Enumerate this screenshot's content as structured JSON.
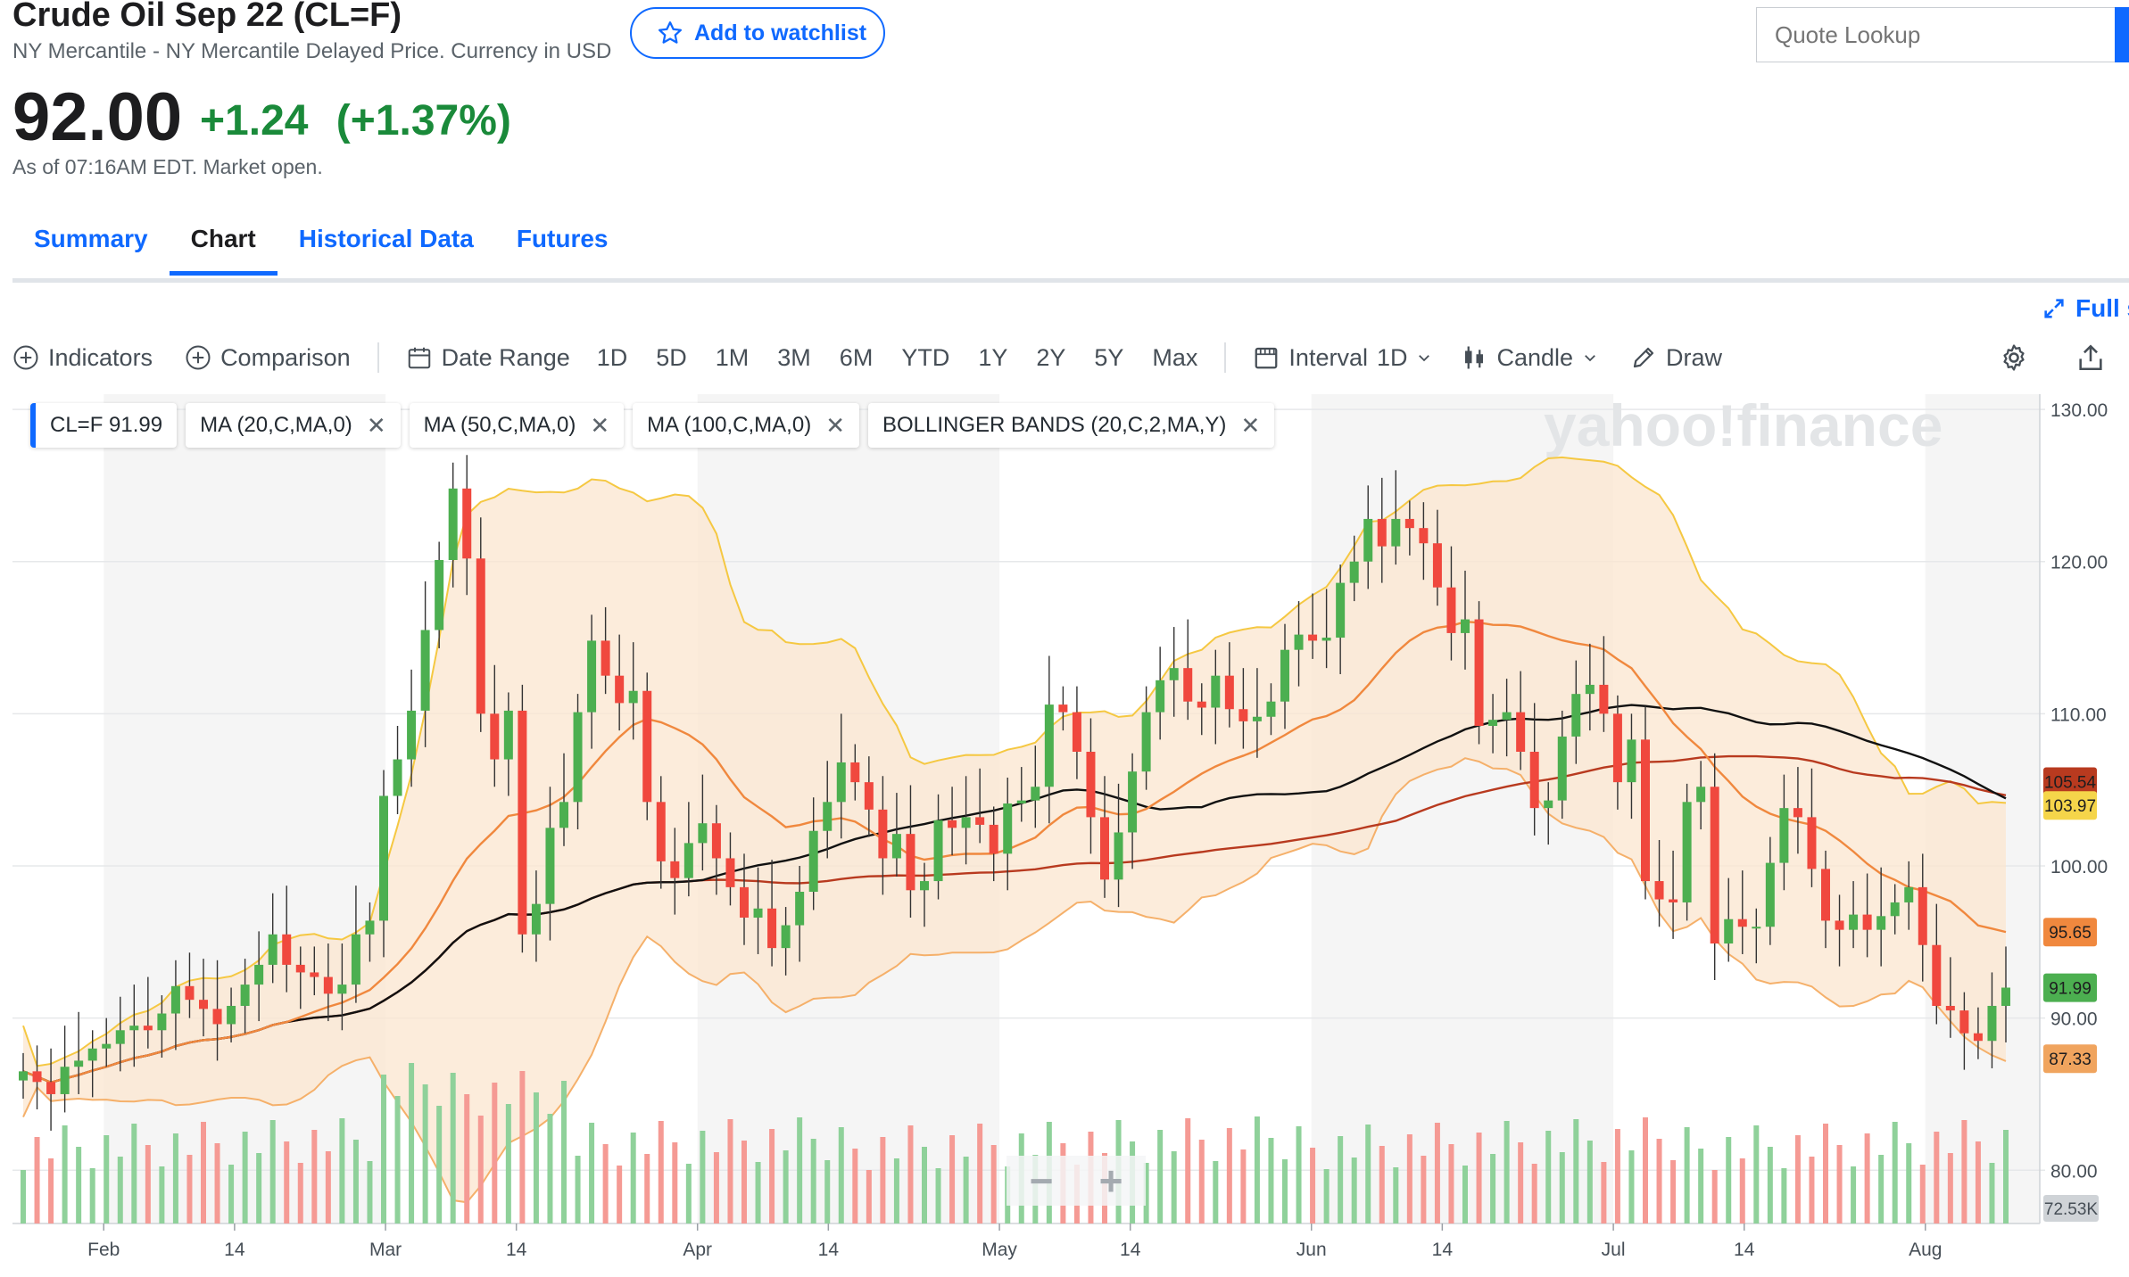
{
  "header": {
    "title": "Crude Oil Sep 22 (CL=F)",
    "subtitle": "NY Mercantile - NY Mercantile Delayed Price. Currency in USD",
    "watchlist_label": "Add to watchlist",
    "search_placeholder": "Quote Lookup"
  },
  "quote": {
    "price": "92.00",
    "change": "+1.24",
    "change_pct": "(+1.37%)",
    "as_of": "As of 07:16AM EDT. Market open."
  },
  "tabs": [
    {
      "label": "Summary",
      "active": false
    },
    {
      "label": "Chart",
      "active": true
    },
    {
      "label": "Historical Data",
      "active": false
    },
    {
      "label": "Futures",
      "active": false
    }
  ],
  "fullscreen_label": "Full s",
  "toolbar": {
    "indicators": "Indicators",
    "comparison": "Comparison",
    "date_range": "Date Range",
    "ranges": [
      "1D",
      "5D",
      "1M",
      "3M",
      "6M",
      "YTD",
      "1Y",
      "2Y",
      "5Y",
      "Max"
    ],
    "interval_label": "Interval",
    "interval_value": "1D",
    "chart_type": "Candle",
    "draw": "Draw"
  },
  "indicator_pills": [
    {
      "label": "CL=F  91.99",
      "removable": false
    },
    {
      "label": "MA (20,C,MA,0)",
      "removable": true
    },
    {
      "label": "MA (50,C,MA,0)",
      "removable": true
    },
    {
      "label": "MA (100,C,MA,0)",
      "removable": true
    },
    {
      "label": "BOLLINGER BANDS (20,C,2,MA,Y)",
      "removable": true
    }
  ],
  "watermark": "yahoo!finance",
  "zoom": {
    "minus": "−",
    "plus": "+"
  },
  "colors": {
    "up": "#4caf50",
    "down": "#f0483e",
    "ma20": "#f0883e",
    "ma50": "#111111",
    "ma100": "#b83a1f",
    "bollinger": "#f5c842",
    "band_fill": "#fbe6cf",
    "accent": "#0f69ff"
  },
  "chart_data": {
    "type": "candlestick",
    "y_ticks": [
      "130.00",
      "120.00",
      "110.00",
      "100.00",
      "90.00",
      "80.00"
    ],
    "y_range": [
      76.5,
      131
    ],
    "x_labels": [
      "Feb",
      "14",
      "Mar",
      "14",
      "Apr",
      "14",
      "May",
      "14",
      "Jun",
      "14",
      "Jul",
      "14",
      "Aug"
    ],
    "date_range": [
      "2022-01-24",
      "2022-08-09"
    ],
    "price_labels": [
      {
        "label": "105.54",
        "value": 105.54,
        "color": "#b83a1f"
      },
      {
        "label": "103.97",
        "value": 103.97,
        "color": "#f5d54a"
      },
      {
        "label": "95.65",
        "value": 95.65,
        "color": "#f0883e"
      },
      {
        "label": "91.99",
        "value": 91.99,
        "color": "#4caf50"
      },
      {
        "label": "87.33",
        "value": 87.33,
        "color": "#f0a45e"
      }
    ],
    "volume_label": "72.53K",
    "closes": [
      86.5,
      85.8,
      85.0,
      86.8,
      87.2,
      88.0,
      88.3,
      89.2,
      89.5,
      89.2,
      90.3,
      92.1,
      91.2,
      90.6,
      89.6,
      90.8,
      92.2,
      93.5,
      95.5,
      93.5,
      93.0,
      92.7,
      91.6,
      92.2,
      95.5,
      96.4,
      104.6,
      107.0,
      110.2,
      115.5,
      120.1,
      124.8,
      120.2,
      110.0,
      107.0,
      110.2,
      95.5,
      97.5,
      102.5,
      104.2,
      110.1,
      114.8,
      112.5,
      110.7,
      111.5,
      104.2,
      100.3,
      99.2,
      101.5,
      102.8,
      100.5,
      98.6,
      96.6,
      97.2,
      94.6,
      96.1,
      98.3,
      102.3,
      104.2,
      106.8,
      105.5,
      103.7,
      100.5,
      102.1,
      98.4,
      99.0,
      103.0,
      102.5,
      103.2,
      102.7,
      100.8,
      104.1,
      104.3,
      105.2,
      110.6,
      110.1,
      107.5,
      103.2,
      99.1,
      102.2,
      106.2,
      110.1,
      112.2,
      113.0,
      110.8,
      110.4,
      112.5,
      110.3,
      109.5,
      109.8,
      110.8,
      114.2,
      115.2,
      114.8,
      115.0,
      118.6,
      120.0,
      122.8,
      121.0,
      122.8,
      122.2,
      121.2,
      118.3,
      115.3,
      116.2,
      109.2,
      109.6,
      110.1,
      107.5,
      103.8,
      104.3,
      108.5,
      111.3,
      111.9,
      110.0,
      105.5,
      108.3,
      99.0,
      97.8,
      97.6,
      104.2,
      105.2,
      94.9,
      96.5,
      96.0,
      96.0,
      100.2,
      103.8,
      103.2,
      99.8,
      96.4,
      95.8,
      96.8,
      95.8,
      96.7,
      97.6,
      98.6,
      94.8,
      90.8,
      90.5,
      89.0,
      88.5,
      90.8,
      92.0
    ],
    "volume_scale": "relative"
  }
}
